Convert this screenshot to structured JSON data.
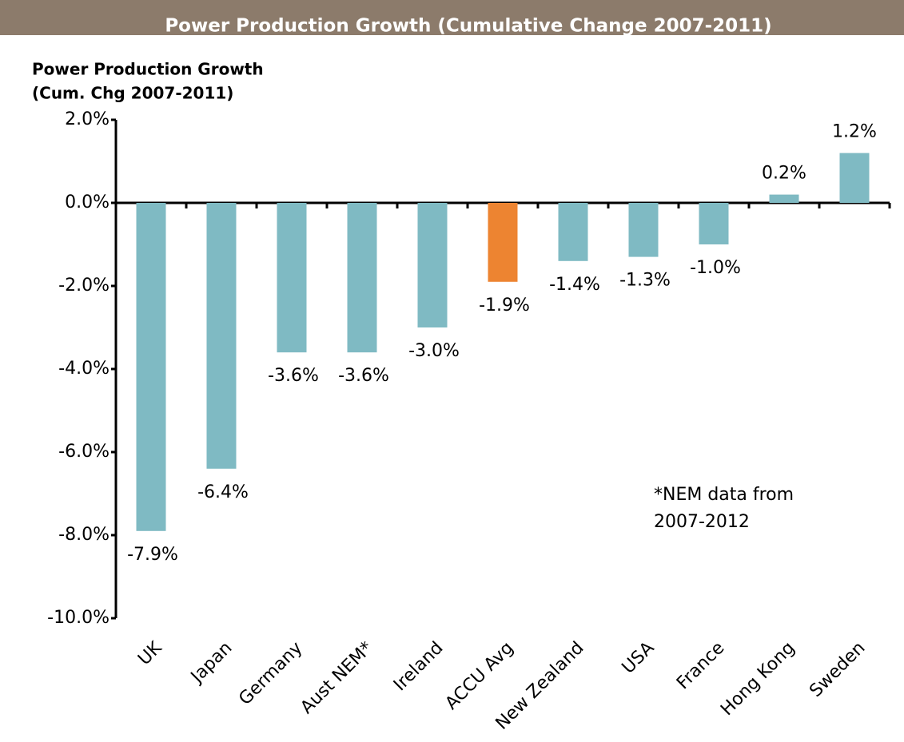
{
  "chart_data": {
    "type": "bar",
    "title": "Power Production Growth (Cumulative Change 2007-2011)",
    "y_axis_label": [
      "Power Production Growth",
      "(Cum. Chg 2007-2011)"
    ],
    "annotation": [
      "*NEM data from",
      "2007-2012"
    ],
    "categories": [
      "UK",
      "Japan",
      "Germany",
      "Aust NEM*",
      "Ireland",
      "ACCU Avg",
      "New Zealand",
      "USA",
      "France",
      "Hong Kong",
      "Sweden"
    ],
    "values": [
      -7.9,
      -6.4,
      -3.6,
      -3.6,
      -3.0,
      -1.9,
      -1.4,
      -1.3,
      -1.0,
      0.2,
      1.2
    ],
    "value_labels": [
      "-7.9%",
      "-6.4%",
      "-3.6%",
      "-3.6%",
      "-3.0%",
      "-1.9%",
      "-1.4%",
      "-1.3%",
      "-1.0%",
      "0.2%",
      "1.2%"
    ],
    "colors": [
      "#7fbac3",
      "#7fbac3",
      "#7fbac3",
      "#7fbac3",
      "#7fbac3",
      "#ed8431",
      "#7fbac3",
      "#7fbac3",
      "#7fbac3",
      "#7fbac3",
      "#7fbac3"
    ],
    "ylim": [
      -10,
      2
    ],
    "yticks": [
      {
        "value": 2,
        "label": "2.0%"
      },
      {
        "value": 0,
        "label": "0.0%"
      },
      {
        "value": -2,
        "label": "-2.0%"
      },
      {
        "value": -4,
        "label": "-4.0%"
      },
      {
        "value": -6,
        "label": "-6.0%"
      },
      {
        "value": -8,
        "label": "-8.0%"
      },
      {
        "value": -10,
        "label": "-10.0%"
      }
    ],
    "grid": false
  }
}
